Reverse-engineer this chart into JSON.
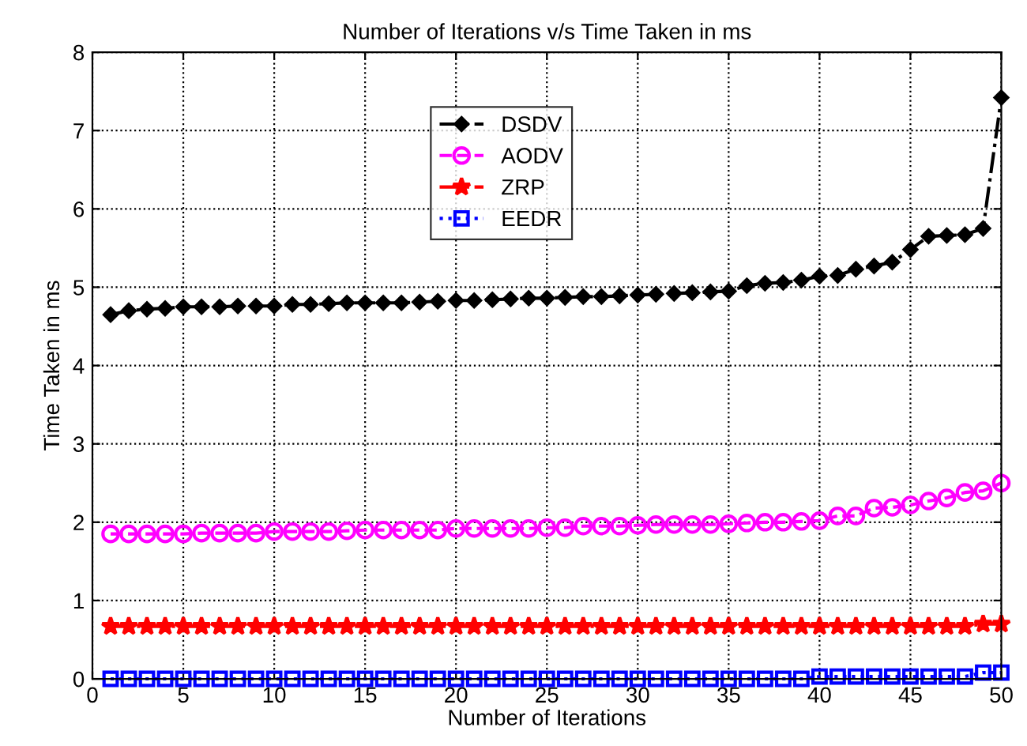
{
  "chart_data": {
    "type": "line",
    "title": "Number of Iterations v/s Time Taken in ms",
    "xlabel": "Number of Iterations",
    "ylabel": "Time Taken in ms",
    "x": [
      1,
      2,
      3,
      4,
      5,
      6,
      7,
      8,
      9,
      10,
      11,
      12,
      13,
      14,
      15,
      16,
      17,
      18,
      19,
      20,
      21,
      22,
      23,
      24,
      25,
      26,
      27,
      28,
      29,
      30,
      31,
      32,
      33,
      34,
      35,
      36,
      37,
      38,
      39,
      40,
      41,
      42,
      43,
      44,
      45,
      46,
      47,
      48,
      49,
      50
    ],
    "series": [
      {
        "name": "DSDV",
        "color": "#000000",
        "marker": "diamond",
        "line_style": "dashdot",
        "values": [
          4.65,
          4.7,
          4.72,
          4.73,
          4.75,
          4.75,
          4.75,
          4.76,
          4.76,
          4.76,
          4.78,
          4.78,
          4.79,
          4.8,
          4.8,
          4.8,
          4.8,
          4.81,
          4.82,
          4.83,
          4.83,
          4.84,
          4.85,
          4.86,
          4.86,
          4.87,
          4.88,
          4.88,
          4.89,
          4.9,
          4.91,
          4.92,
          4.93,
          4.94,
          4.95,
          5.02,
          5.05,
          5.06,
          5.09,
          5.14,
          5.15,
          5.23,
          5.27,
          5.32,
          5.48,
          5.65,
          5.66,
          5.67,
          5.75,
          7.42
        ]
      },
      {
        "name": "AODV",
        "color": "#ff00ff",
        "marker": "circle",
        "line_style": "dashed",
        "values": [
          1.85,
          1.85,
          1.85,
          1.85,
          1.85,
          1.86,
          1.86,
          1.86,
          1.86,
          1.88,
          1.88,
          1.88,
          1.88,
          1.89,
          1.9,
          1.9,
          1.9,
          1.9,
          1.9,
          1.92,
          1.92,
          1.92,
          1.92,
          1.92,
          1.93,
          1.93,
          1.95,
          1.95,
          1.95,
          1.96,
          1.97,
          1.97,
          1.97,
          1.97,
          1.98,
          1.99,
          2.0,
          2.0,
          2.01,
          2.02,
          2.08,
          2.08,
          2.18,
          2.19,
          2.22,
          2.27,
          2.31,
          2.38,
          2.4,
          2.5
        ]
      },
      {
        "name": "ZRP",
        "color": "#ff0000",
        "marker": "star",
        "line_style": "dashdot",
        "values": [
          0.67,
          0.67,
          0.67,
          0.67,
          0.67,
          0.67,
          0.67,
          0.67,
          0.67,
          0.67,
          0.67,
          0.67,
          0.67,
          0.67,
          0.67,
          0.67,
          0.67,
          0.67,
          0.67,
          0.67,
          0.67,
          0.67,
          0.67,
          0.67,
          0.67,
          0.67,
          0.67,
          0.67,
          0.67,
          0.67,
          0.67,
          0.67,
          0.67,
          0.67,
          0.67,
          0.67,
          0.67,
          0.67,
          0.67,
          0.67,
          0.67,
          0.67,
          0.67,
          0.67,
          0.67,
          0.67,
          0.67,
          0.67,
          0.7,
          0.7
        ]
      },
      {
        "name": "EEDR",
        "color": "#0000ff",
        "marker": "square",
        "line_style": "dotted",
        "values": [
          0,
          0,
          0,
          0,
          0,
          0,
          0,
          0,
          0,
          0,
          0,
          0,
          0,
          0,
          0,
          0,
          0,
          0,
          0,
          0,
          0,
          0,
          0,
          0,
          0,
          0,
          0,
          0,
          0,
          0,
          0,
          0,
          0,
          0,
          0,
          0,
          0,
          0,
          0,
          0.03,
          0.03,
          0.03,
          0.03,
          0.03,
          0.03,
          0.03,
          0.03,
          0.03,
          0.08,
          0.08
        ]
      }
    ],
    "xlim": [
      0,
      50
    ],
    "xticks": [
      0,
      5,
      10,
      15,
      20,
      25,
      30,
      35,
      40,
      45,
      50
    ],
    "ylim": [
      0,
      8
    ],
    "yticks": [
      0,
      1,
      2,
      3,
      4,
      5,
      6,
      7,
      8
    ],
    "grid": true,
    "legend": "top"
  }
}
